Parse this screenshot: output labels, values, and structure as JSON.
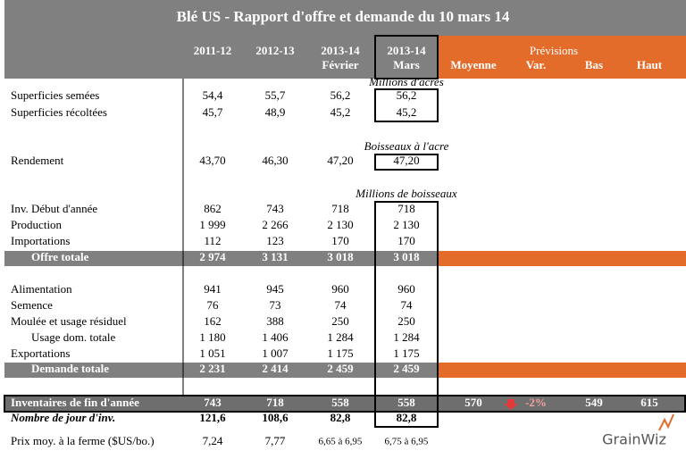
{
  "title": "Blé US - Rapport d'offre et demande du 10 mars 14",
  "columns": [
    [
      "2011-12"
    ],
    [
      "2012-13"
    ],
    [
      "2013-14",
      "Février"
    ],
    [
      "2013-14",
      "Mars"
    ]
  ],
  "forecast": {
    "title": "Prévisions",
    "columns": [
      "Moyenne",
      "Var.",
      "Bas",
      "Haut"
    ]
  },
  "units": [
    "Millions d'acres",
    "Boisseaux à l'acre",
    "Millions de boisseaux"
  ],
  "rows": [
    {
      "label": "Superficies semées",
      "values": [
        "54,4",
        "55,7",
        "56,2",
        "56,2"
      ]
    },
    {
      "label": "Superficies récoltées",
      "values": [
        "45,7",
        "48,9",
        "45,2",
        "45,2"
      ]
    },
    {
      "label": "Rendement",
      "values": [
        "43,70",
        "46,30",
        "47,20",
        "47,20"
      ]
    },
    {
      "label": "Inv. Début d'année",
      "values": [
        "862",
        "743",
        "718",
        "718"
      ]
    },
    {
      "label": "Production",
      "values": [
        "1 999",
        "2 266",
        "2 130",
        "2 130"
      ]
    },
    {
      "label": "Importations",
      "values": [
        "112",
        "123",
        "170",
        "170"
      ]
    },
    {
      "label": "Offre totale",
      "values": [
        "2 974",
        "3 131",
        "3 018",
        "3 018"
      ]
    },
    {
      "label": "Alimentation",
      "values": [
        "941",
        "945",
        "960",
        "960"
      ]
    },
    {
      "label": "Semence",
      "values": [
        "76",
        "73",
        "74",
        "74"
      ]
    },
    {
      "label": "Moulée et usage résiduel",
      "values": [
        "162",
        "388",
        "250",
        "250"
      ]
    },
    {
      "label": "Usage dom. totale",
      "values": [
        "1 180",
        "1 406",
        "1 284",
        "1 284"
      ]
    },
    {
      "label": "Exportations",
      "values": [
        "1 051",
        "1 007",
        "1 175",
        "1 175"
      ]
    },
    {
      "label": "Demande totale",
      "values": [
        "2 231",
        "2 414",
        "2 459",
        "2 459"
      ]
    },
    {
      "label": "Inventaires de fin d'année",
      "values": [
        "743",
        "718",
        "558",
        "558"
      ],
      "forecast": [
        "570",
        "-2%",
        "549",
        "615"
      ]
    },
    {
      "label": "Nombre de jour d'inv.",
      "values": [
        "121,6",
        "108,6",
        "82,8",
        "82,8"
      ]
    },
    {
      "label": "Prix moy. à la ferme ($US/bo.)",
      "values": [
        "7,24",
        "7,77",
        "6,65 à 6,95",
        "6,75 à 6,95"
      ]
    }
  ],
  "logo": "GrainWiz"
}
